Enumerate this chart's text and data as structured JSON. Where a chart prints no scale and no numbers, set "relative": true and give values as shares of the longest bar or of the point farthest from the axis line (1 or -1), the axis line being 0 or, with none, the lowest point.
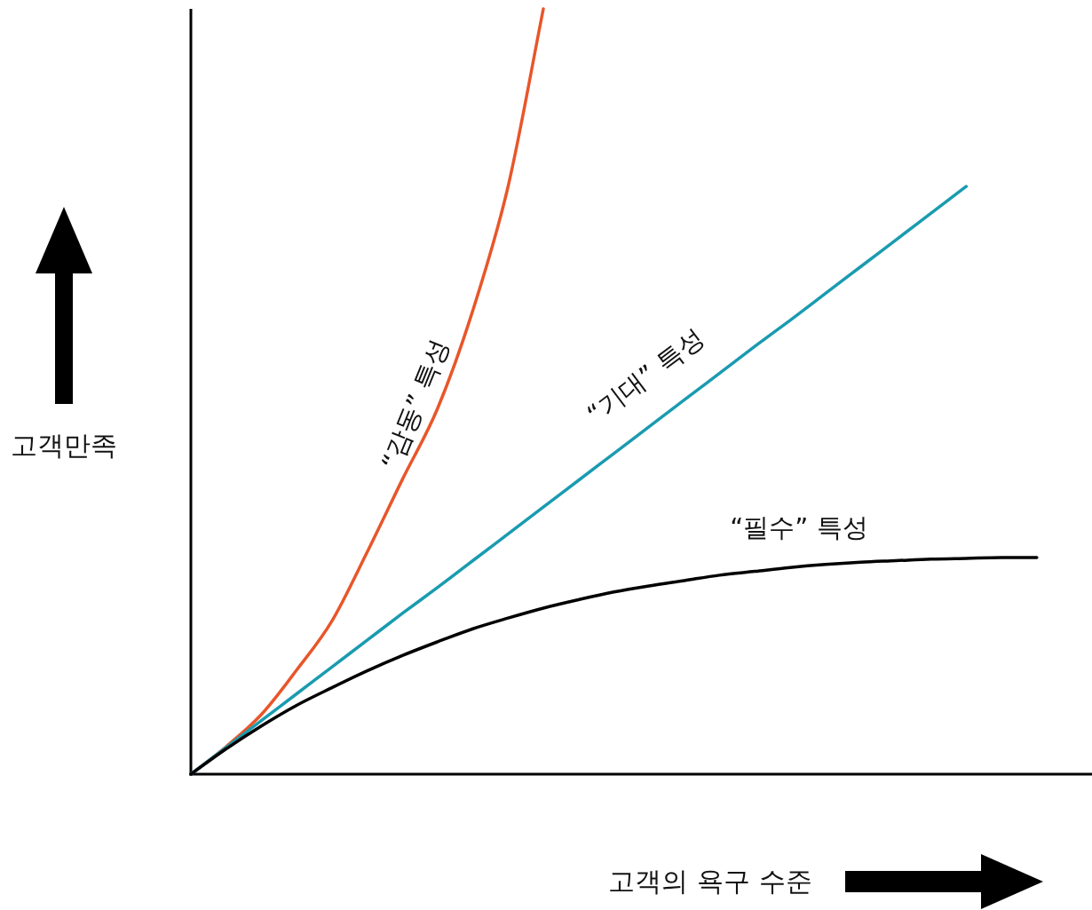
{
  "chart_data": {
    "type": "line",
    "relative": true,
    "legend": false,
    "marker": "none",
    "line_style": "solid",
    "xlabel": "고객의 욕구 수준",
    "ylabel": "고객만족",
    "categories": [
      null,
      null,
      null,
      null,
      null,
      null,
      null,
      null,
      null,
      null,
      null,
      null,
      null,
      null,
      null,
      null,
      null,
      null,
      null,
      null,
      null,
      null,
      null,
      null,
      null
    ],
    "series": [
      {
        "name": "“감동” 특성",
        "color": "#e8562a",
        "values": [
          0,
          0.036,
          0.078,
          0.136,
          0.2,
          0.29,
          0.385,
          0.478,
          0.606,
          0.768,
          1.0,
          null,
          null,
          null,
          null,
          null,
          null,
          null,
          null,
          null,
          null,
          null,
          null,
          null,
          null
        ]
      },
      {
        "name": "“기대” 특성",
        "color": "#1a9bb0",
        "values": [
          0,
          0.035,
          0.07,
          0.105,
          0.14,
          0.175,
          0.21,
          0.244,
          0.279,
          0.314,
          0.349,
          0.384,
          0.419,
          0.454,
          0.489,
          0.524,
          0.559,
          0.593,
          0.628,
          0.663,
          0.698,
          0.733,
          0.768,
          null,
          null
        ]
      },
      {
        "name": "“필수” 특성",
        "color": "#000000",
        "values": [
          0,
          0.033,
          0.063,
          0.09,
          0.113,
          0.135,
          0.155,
          0.173,
          0.19,
          0.204,
          0.217,
          0.228,
          0.238,
          0.246,
          0.253,
          0.26,
          0.265,
          0.27,
          0.274,
          0.277,
          0.279,
          0.281,
          0.282,
          0.283,
          0.283
        ]
      }
    ]
  }
}
